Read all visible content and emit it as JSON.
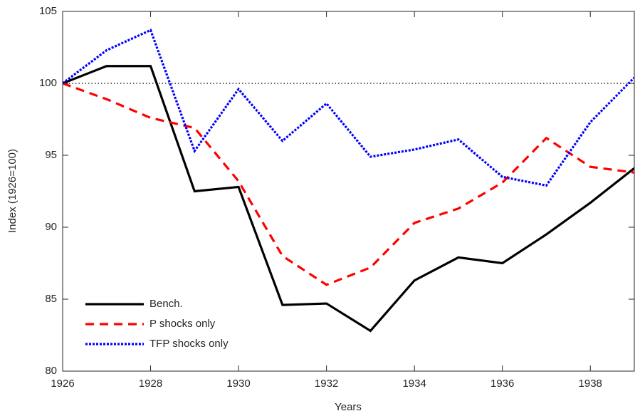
{
  "chart_data": {
    "type": "line",
    "x_label": "Years",
    "y_label": "Index (1926=100)",
    "x": [
      1926,
      1927,
      1928,
      1929,
      1930,
      1931,
      1932,
      1933,
      1934,
      1935,
      1936,
      1937,
      1938,
      1939
    ],
    "series": [
      {
        "name": "Bench.",
        "color": "#000000",
        "dash": "solid",
        "values": [
          100,
          101.2,
          101.2,
          92.5,
          92.8,
          84.6,
          84.7,
          82.8,
          86.3,
          87.9,
          87.5,
          89.5,
          91.7,
          94.1
        ]
      },
      {
        "name": "P shocks only",
        "color": "#ff0000",
        "dash": "dashed",
        "values": [
          100,
          98.9,
          97.6,
          96.9,
          93.2,
          88.0,
          86.0,
          87.2,
          90.3,
          91.3,
          93.1,
          96.2,
          94.2,
          93.8
        ]
      },
      {
        "name": "TFP shocks only",
        "color": "#0000ff",
        "dash": "dotted",
        "values": [
          100,
          102.3,
          103.7,
          95.3,
          99.6,
          96.0,
          98.6,
          94.9,
          95.4,
          96.1,
          93.5,
          92.9,
          97.3,
          100.4
        ]
      }
    ],
    "reference_line": 100,
    "xlim": [
      1926,
      1939
    ],
    "ylim": [
      80,
      105
    ],
    "xticks": [
      1926,
      1928,
      1930,
      1932,
      1934,
      1936,
      1938
    ],
    "yticks": [
      80,
      85,
      90,
      95,
      100,
      105
    ],
    "legend": "lower-left"
  }
}
